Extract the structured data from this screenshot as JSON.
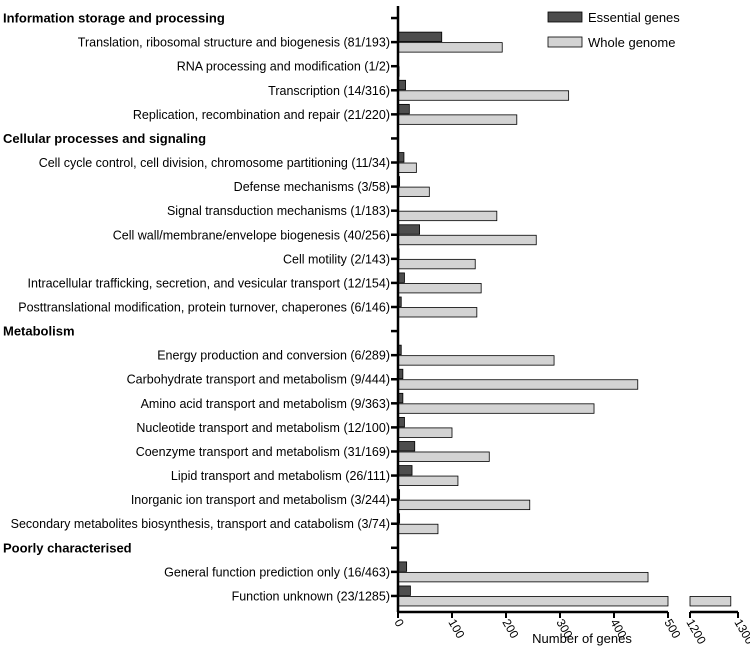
{
  "chart_data": {
    "type": "bar",
    "orientation": "horizontal",
    "xlabel": "Number of genes",
    "ylabel": "",
    "title": "",
    "grid": false,
    "legend_position": "top-right",
    "x_axis_break": {
      "segments": [
        [
          0,
          500
        ],
        [
          1200,
          1300
        ]
      ]
    },
    "x_ticks": [
      0,
      100,
      200,
      300,
      400,
      500,
      1200,
      1300
    ],
    "series": [
      {
        "name": "Essential genes",
        "color": "#4d4d4d"
      },
      {
        "name": "Whole genome",
        "color": "#d3d3d3"
      }
    ],
    "groups": [
      {
        "title": "Information storage and processing",
        "categories": [
          {
            "label": "Translation, ribosomal structure and biogenesis (81/193)",
            "essential": 81,
            "whole": 193
          },
          {
            "label": "RNA processing and modification (1/2)",
            "essential": 1,
            "whole": 2
          },
          {
            "label": "Transcription (14/316)",
            "essential": 14,
            "whole": 316
          },
          {
            "label": "Replication, recombination and repair (21/220)",
            "essential": 21,
            "whole": 220
          }
        ]
      },
      {
        "title": "Cellular processes and signaling",
        "categories": [
          {
            "label": "Cell cycle control, cell division, chromosome partitioning (11/34)",
            "essential": 11,
            "whole": 34
          },
          {
            "label": "Defense mechanisms (3/58)",
            "essential": 3,
            "whole": 58
          },
          {
            "label": "Signal transduction mechanisms (1/183)",
            "essential": 1,
            "whole": 183
          },
          {
            "label": "Cell wall/membrane/envelope biogenesis (40/256)",
            "essential": 40,
            "whole": 256
          },
          {
            "label": "Cell motility (2/143)",
            "essential": 2,
            "whole": 143
          },
          {
            "label": "Intracellular trafficking, secretion, and vesicular transport (12/154)",
            "essential": 12,
            "whole": 154
          },
          {
            "label": "Posttranslational modification, protein turnover, chaperones (6/146)",
            "essential": 6,
            "whole": 146
          }
        ]
      },
      {
        "title": "Metabolism",
        "categories": [
          {
            "label": "Energy production and conversion (6/289)",
            "essential": 6,
            "whole": 289
          },
          {
            "label": "Carbohydrate transport and metabolism (9/444)",
            "essential": 9,
            "whole": 444
          },
          {
            "label": "Amino acid transport and metabolism (9/363)",
            "essential": 9,
            "whole": 363
          },
          {
            "label": "Nucleotide transport and metabolism (12/100)",
            "essential": 12,
            "whole": 100
          },
          {
            "label": "Coenzyme transport and metabolism (31/169)",
            "essential": 31,
            "whole": 169
          },
          {
            "label": "Lipid transport and metabolism (26/111)",
            "essential": 26,
            "whole": 111
          },
          {
            "label": "Inorganic ion transport and metabolism (3/244)",
            "essential": 3,
            "whole": 244
          },
          {
            "label": "Secondary metabolites biosynthesis, transport and catabolism (3/74)",
            "essential": 3,
            "whole": 74
          }
        ]
      },
      {
        "title": "Poorly characterised",
        "categories": [
          {
            "label": "General function prediction only (16/463)",
            "essential": 16,
            "whole": 463
          },
          {
            "label": "Function unknown (23/1285)",
            "essential": 23,
            "whole": 1285
          }
        ]
      }
    ]
  }
}
